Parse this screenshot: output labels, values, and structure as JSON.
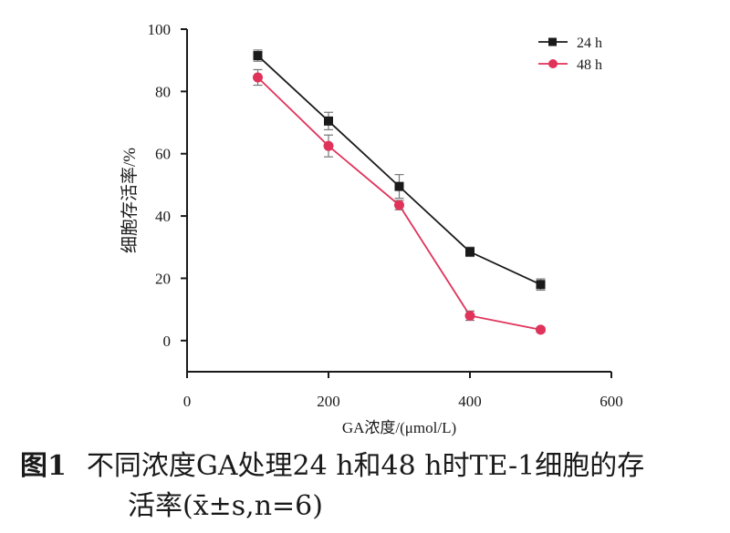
{
  "chart_data": {
    "type": "line",
    "xlabel": "GA浓度/(μmol/L)",
    "ylabel": "细胞存活率/%",
    "xlim": [
      0,
      600
    ],
    "ylim": [
      -10,
      100
    ],
    "x_ticks": [
      0,
      200,
      400,
      600
    ],
    "y_ticks": [
      0,
      20,
      40,
      60,
      80,
      100
    ],
    "x_tick_labels": [
      "0",
      "200",
      "400",
      "600"
    ],
    "y_tick_labels": [
      "0",
      "20",
      "40",
      "60",
      "80",
      "100"
    ],
    "grid": false,
    "legend_position": "top-right",
    "x": [
      100,
      200,
      300,
      400,
      500
    ],
    "series": [
      {
        "name": "24 h",
        "values": [
          91.5,
          70.5,
          49.5,
          28.5,
          18
        ],
        "errors": [
          1.8,
          2.8,
          3.8,
          1.5,
          1.8
        ],
        "color": "#1a1a1a",
        "marker": "square"
      },
      {
        "name": "48 h",
        "values": [
          84.5,
          62.5,
          43.5,
          8,
          3.5
        ],
        "errors": [
          2.5,
          3.5,
          1.5,
          1.5,
          0.8
        ],
        "color": "#e0335a",
        "marker": "circle"
      }
    ]
  },
  "caption": {
    "figure_number": "图1",
    "line1": "不同浓度GA处理24 h和48 h时TE-1细胞的存",
    "line2": "活率(x̄±s,n=6)"
  }
}
